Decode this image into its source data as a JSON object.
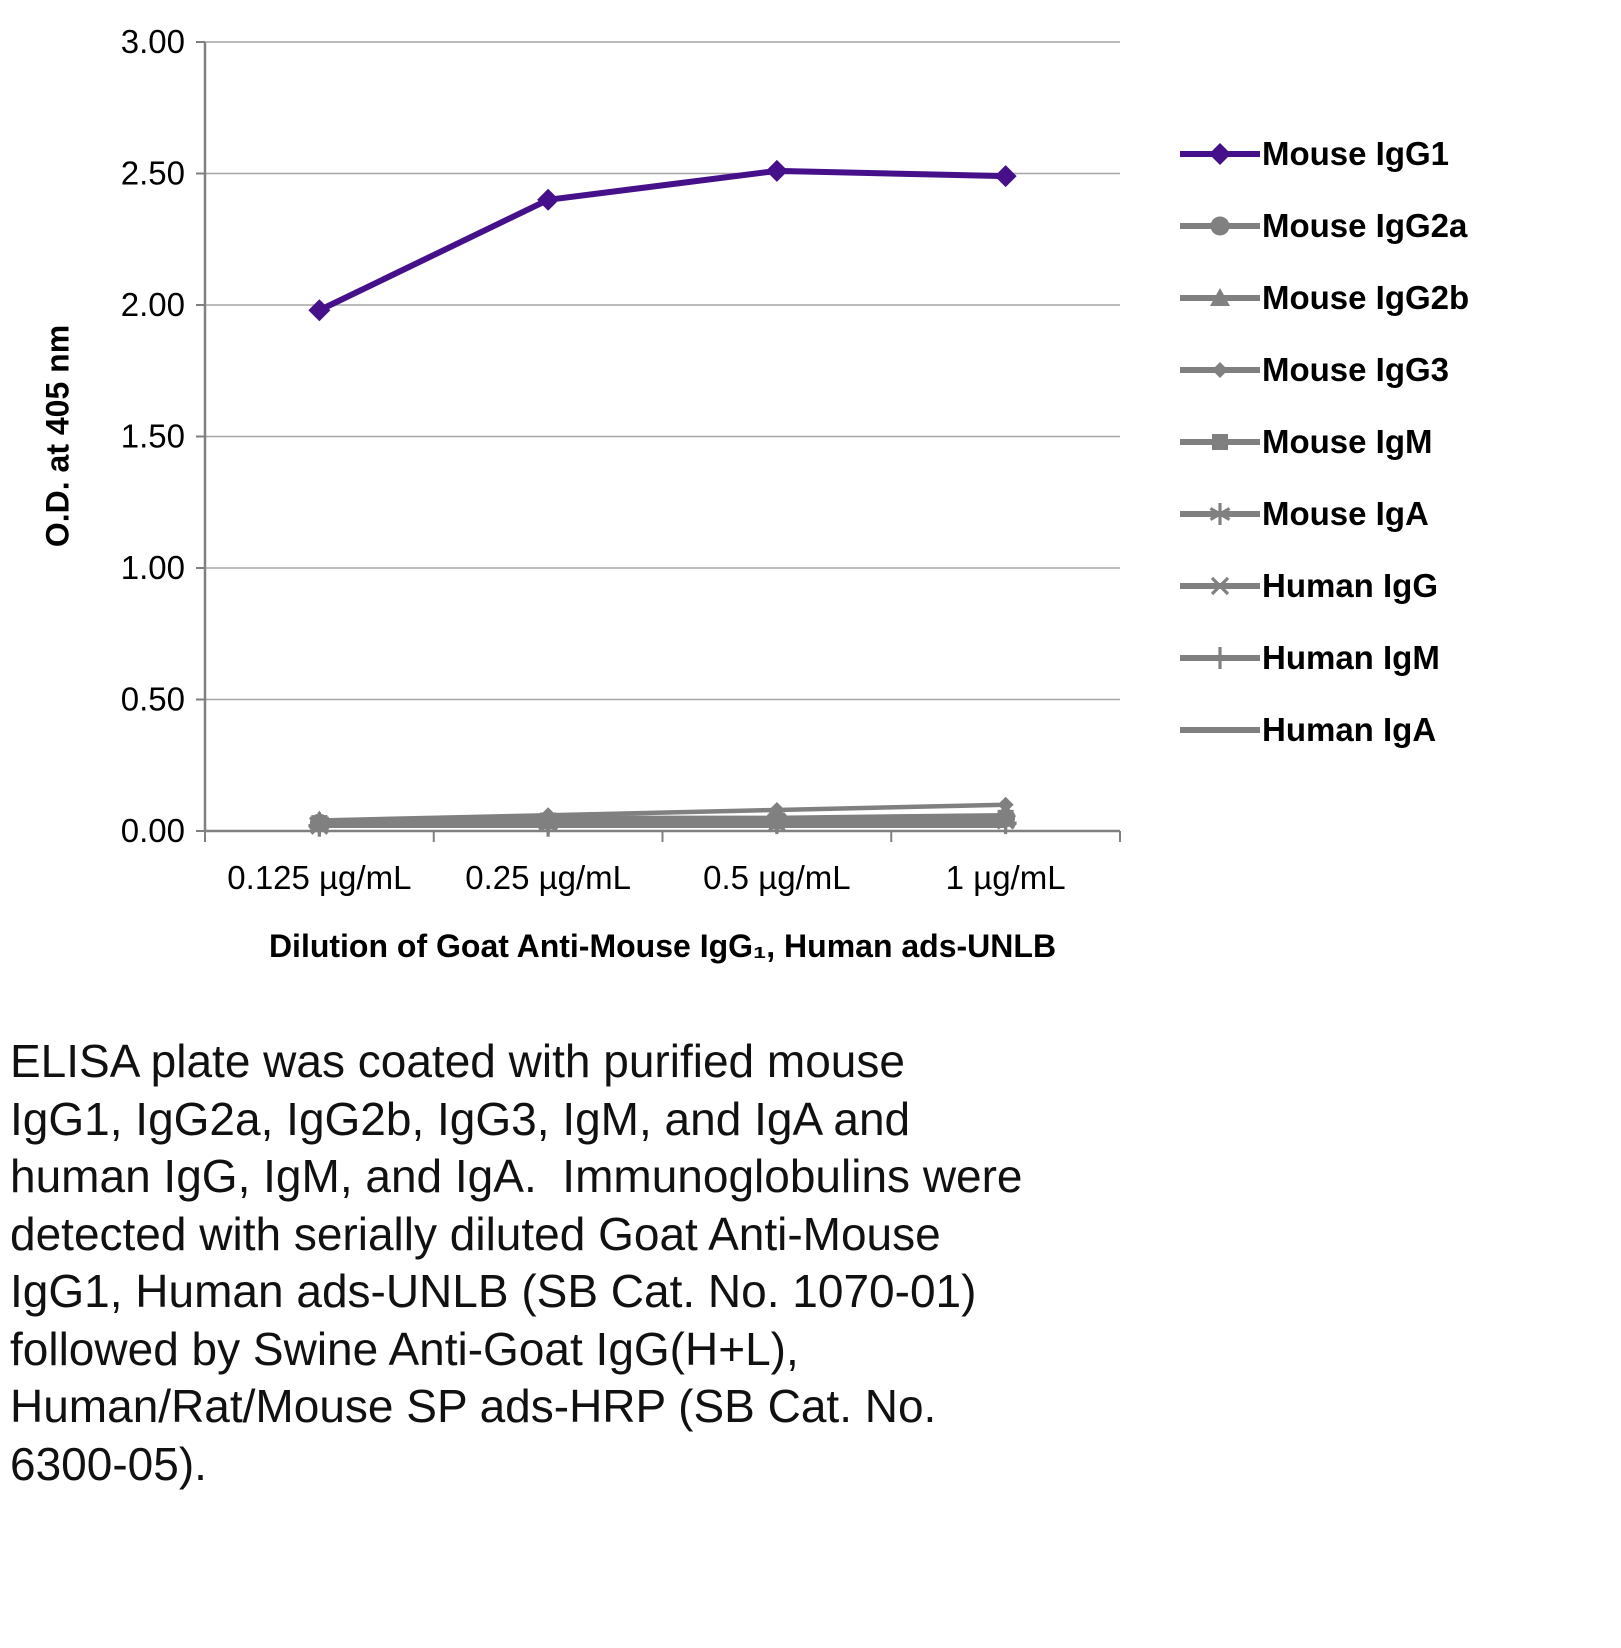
{
  "caption": "ELISA plate was coated with purified mouse\nIgG1, IgG2a, IgG2b, IgG3, IgM, and IgA and\nhuman IgG, IgM, and IgA.  Immunoglobulins were\ndetected with serially diluted Goat Anti-Mouse\nIgG1, Human ads-UNLB (SB Cat. No. 1070-01)\nfollowed by Swine Anti-Goat IgG(H+L),\nHuman/Rat/Mouse SP ads-HRP (SB Cat. No.\n6300-05).",
  "chart_data": {
    "type": "line",
    "title": "",
    "xlabel": "Dilution of Goat Anti-Mouse IgG₁, Human ads-UNLB",
    "ylabel": "O.D. at 405 nm",
    "categories": [
      "0.125 µg/mL",
      "0.25 µg/mL",
      "0.5 µg/mL",
      "1 µg/mL"
    ],
    "ylim": [
      0,
      3.0
    ],
    "ytick_step": 0.5,
    "ytick_labels": [
      "0.00",
      "0.50",
      "1.00",
      "1.50",
      "2.00",
      "2.50",
      "3.00"
    ],
    "grid": true,
    "legend_position": "right",
    "colors": {
      "grid": "#a6a6a6",
      "axis": "#808080",
      "text": "#000000"
    },
    "series": [
      {
        "name": "Mouse IgG1",
        "marker": "diamond",
        "color": "#45108a",
        "values": [
          1.98,
          2.4,
          2.51,
          2.49
        ]
      },
      {
        "name": "Mouse IgG2a",
        "marker": "circle",
        "color": "#808080",
        "values": [
          0.03,
          0.04,
          0.04,
          0.05
        ]
      },
      {
        "name": "Mouse IgG2b",
        "marker": "triangle",
        "color": "#808080",
        "values": [
          0.04,
          0.05,
          0.05,
          0.06
        ]
      },
      {
        "name": "Mouse IgG3",
        "marker": "diamond-small",
        "color": "#808080",
        "values": [
          0.04,
          0.06,
          0.08,
          0.1
        ]
      },
      {
        "name": "Mouse IgM",
        "marker": "square",
        "color": "#808080",
        "values": [
          0.03,
          0.04,
          0.04,
          0.05
        ]
      },
      {
        "name": "Mouse IgA",
        "marker": "asterisk",
        "color": "#808080",
        "values": [
          0.03,
          0.03,
          0.04,
          0.04
        ]
      },
      {
        "name": "Human IgG",
        "marker": "x",
        "color": "#808080",
        "values": [
          0.02,
          0.03,
          0.03,
          0.04
        ]
      },
      {
        "name": "Human IgM",
        "marker": "plus",
        "color": "#808080",
        "values": [
          0.02,
          0.02,
          0.03,
          0.03
        ]
      },
      {
        "name": "Human IgA",
        "marker": "none",
        "color": "#808080",
        "values": [
          0.02,
          0.02,
          0.02,
          0.02
        ]
      }
    ]
  }
}
